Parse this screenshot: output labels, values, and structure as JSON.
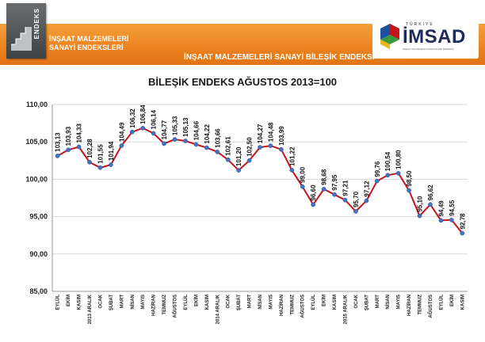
{
  "header": {
    "logo_text": "ENDEKS",
    "title_line1": "İNŞAAT MALZEMELERİ",
    "title_line2": "SANAYİ ENDEKSLERİ",
    "subtitle": "İNŞAAT MALZEMELERİ SANAYİ BİLEŞİK ENDEKSİ",
    "brand_country": "TÜRKİYE",
    "brand_name": "İMSAD",
    "brand_full": "İNŞAAT MALZEMESİ SANAYİCİLERİ DERNEĞİ"
  },
  "colors": {
    "line": "#c0161b",
    "marker": "#4472c4",
    "grid": "#d9d9d9",
    "orange": "#ec8420"
  },
  "chart_data": {
    "type": "line",
    "title": "BİLEŞİK ENDEKS AĞUSTOS 2013=100",
    "xlabel": "",
    "ylabel": "",
    "ylim": [
      85,
      110
    ],
    "yticks": [
      "85,00",
      "90,00",
      "95,00",
      "100,00",
      "105,00",
      "110,00"
    ],
    "ytick_values": [
      85,
      90,
      95,
      100,
      105,
      110
    ],
    "grid": true,
    "categories": [
      "EYLÜL",
      "EKİM",
      "KASIM",
      "2013 ARALIK",
      "OCAK",
      "ŞUBAT",
      "MART",
      "NİSAN",
      "MAYIS",
      "HAZİRAN",
      "TEMMUZ",
      "AĞUSTOS",
      "EYLÜL",
      "EKİM",
      "KASIM",
      "2014 ARALIK",
      "OCAK",
      "ŞUBAT",
      "MART",
      "NİSAN",
      "MAYIS",
      "HAZİRAN",
      "TEMMUZ",
      "AĞUSTOS",
      "EYLÜL",
      "EKİM",
      "KASIM",
      "2015 ARALIK",
      "OCAK",
      "ŞUBAT",
      "MART",
      "NİSAN",
      "MAYIS",
      "HAZİRAN",
      "TEMMUZ",
      "AĞUSTOS",
      "EYLÜL",
      "EKİM",
      "KASIM"
    ],
    "values": [
      103.13,
      103.93,
      104.33,
      102.28,
      101.55,
      101.94,
      104.49,
      106.32,
      106.84,
      106.14,
      104.77,
      105.33,
      105.13,
      104.66,
      104.22,
      103.66,
      102.61,
      101.2,
      102.5,
      104.27,
      104.48,
      103.99,
      101.22,
      99.0,
      96.6,
      98.68,
      97.95,
      97.21,
      95.7,
      97.12,
      99.76,
      100.54,
      100.8,
      98.5,
      95.1,
      96.62,
      94.49,
      94.55,
      92.78
    ],
    "labels": [
      "103,13",
      "103,93",
      "104,33",
      "102,28",
      "101,55",
      "101,94",
      "104,49",
      "106,32",
      "106,84",
      "106,14",
      "104,77",
      "105,33",
      "105,13",
      "104,66",
      "104,22",
      "103,66",
      "102,61",
      "101,20",
      "102,50",
      "104,27",
      "104,48",
      "103,99",
      "101,22",
      "99,00",
      "96,60",
      "98,68",
      "97,95",
      "97,21",
      "95,70",
      "97,12",
      "99,76",
      "100,54",
      "100,80",
      "98,50",
      "95,10",
      "96,62",
      "94,49",
      "94,55",
      "92,78"
    ]
  }
}
